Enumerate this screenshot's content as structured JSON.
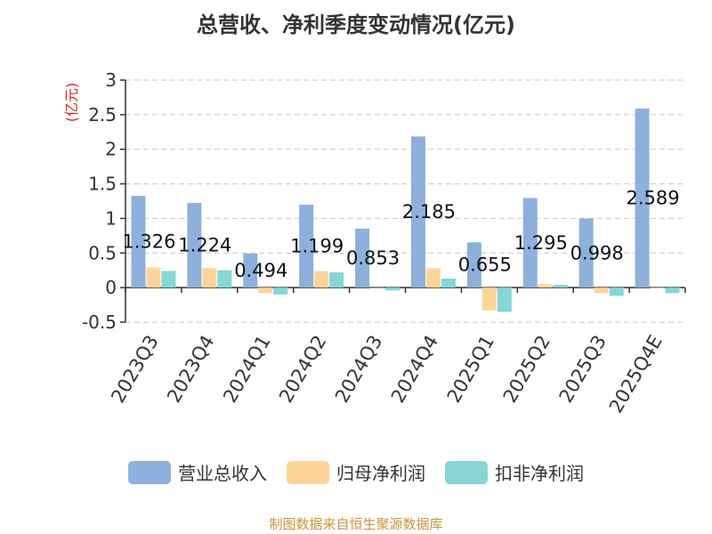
{
  "title": "总营收、净利季度变动情况(亿元)",
  "source": "制图数据来自恒生聚源数据库",
  "chart_data": {
    "type": "bar",
    "title": "总营收、净利季度变动情况(亿元)",
    "ylabel": "(亿元)",
    "xlabel": "",
    "ylim": [
      -0.5,
      3
    ],
    "yticks": [
      "-0.5",
      "0",
      "0.5",
      "1",
      "1.5",
      "2",
      "2.5",
      "3"
    ],
    "grid": true,
    "legend_position": "bottom",
    "categories": [
      "2023Q3",
      "2023Q4",
      "2024Q1",
      "2024Q2",
      "2024Q3",
      "2024Q4",
      "2025Q1",
      "2025Q2",
      "2025Q3",
      "2025Q4E"
    ],
    "series": [
      {
        "name": "营业总收入",
        "color": "#8eb0dc",
        "values": [
          1.326,
          1.224,
          0.494,
          1.199,
          0.853,
          2.185,
          0.655,
          1.295,
          0.998,
          2.589
        ],
        "labels": [
          "1.326",
          "1.224",
          "0.494",
          "1.199",
          "0.853",
          "2.185",
          "0.655",
          "1.295",
          "0.998",
          "2.589"
        ]
      },
      {
        "name": "归母净利润",
        "color": "#fdd59b",
        "values": [
          0.29,
          0.28,
          -0.08,
          0.24,
          0.0,
          0.28,
          -0.33,
          0.05,
          -0.08,
          -0.01
        ]
      },
      {
        "name": "扣非净利润",
        "color": "#86d6d6",
        "values": [
          0.24,
          0.25,
          -0.1,
          0.22,
          -0.04,
          0.13,
          -0.35,
          0.04,
          -0.12,
          -0.08
        ]
      }
    ]
  }
}
